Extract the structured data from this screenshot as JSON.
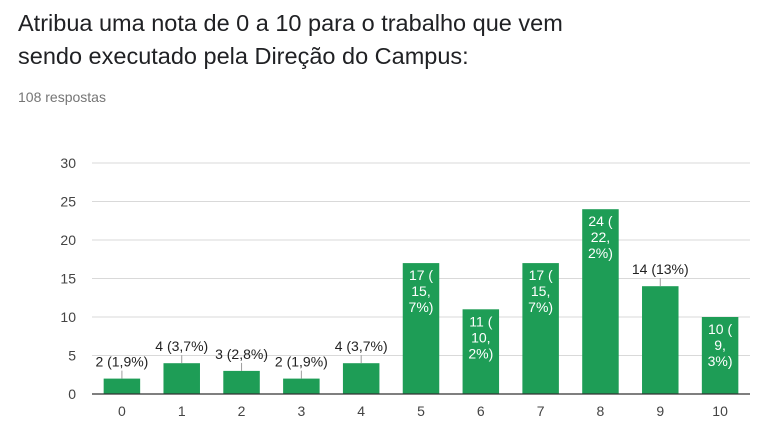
{
  "header": {
    "title_line1": "Atribua uma nota de 0 a 10 para o trabalho que vem",
    "title_line2": "sendo executado pela Direção do Campus:",
    "responses": "108 respostas"
  },
  "chart_data": {
    "type": "bar",
    "categories": [
      "0",
      "1",
      "2",
      "3",
      "4",
      "5",
      "6",
      "7",
      "8",
      "9",
      "10"
    ],
    "values": [
      2,
      4,
      3,
      2,
      4,
      17,
      11,
      17,
      24,
      14,
      10
    ],
    "labels": [
      [
        "2 (1,9%)"
      ],
      [
        "4 (3,7%)"
      ],
      [
        "3 (2,8%)"
      ],
      [
        "2 (1,9%)"
      ],
      [
        "4 (3,7%)"
      ],
      [
        "17 (",
        "15,",
        "7%)"
      ],
      [
        "11 (",
        "10,",
        "2%)"
      ],
      [
        "17 (",
        "15,",
        "7%)"
      ],
      [
        "24 (",
        "22,",
        "2%)"
      ],
      [
        "14 (13%)"
      ],
      [
        "10 (",
        "9,",
        "3%)"
      ]
    ],
    "yticks": [
      0,
      5,
      10,
      15,
      20,
      25,
      30
    ],
    "ylim": [
      0,
      30
    ],
    "grid": true,
    "colors": {
      "bar": "#1e9d56",
      "grid": "#d9d9d9",
      "axis": "#333333",
      "leader": "#9e9e9e"
    }
  }
}
